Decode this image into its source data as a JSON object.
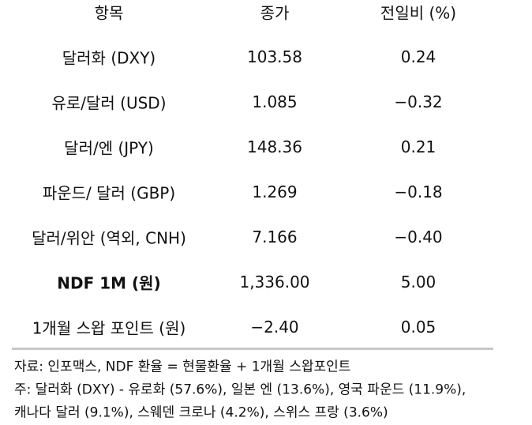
{
  "table": {
    "header": [
      "항목",
      "종가",
      "전일비 (%)"
    ],
    "rows": [
      [
        "달러화 (DXY)",
        "103.58",
        "0.24"
      ],
      [
        "유로/달러 (USD)",
        "1.085",
        "−0.32"
      ],
      [
        "달러/엔 (JPY)",
        "148.36",
        "0.21"
      ],
      [
        "파운드/ 달러 (GBP)",
        "1.269",
        "−0.18"
      ],
      [
        "달러/위안 (역외, CNH)",
        "7.166",
        "−0.40"
      ],
      [
        "NDF 1M (원)",
        "1,336.00",
        "5.00"
      ],
      [
        "1개월 스왑 포인트 (원)",
        "−2.40",
        "0.05"
      ]
    ]
  },
  "notes": [
    "자료: 인포맥스, NDF 환율 = 현물환율 + 1개월 스왑포인트",
    "주: 달러화 (DXY) - 유로화 (57.6%), 일본 엔 (13.6%), 영국 파운드 (11.9%),",
    "캐나다 달러 (9.1%), 스웨덴 크로나 (4.2%), 스위스 프랑 (3.6%)"
  ]
}
